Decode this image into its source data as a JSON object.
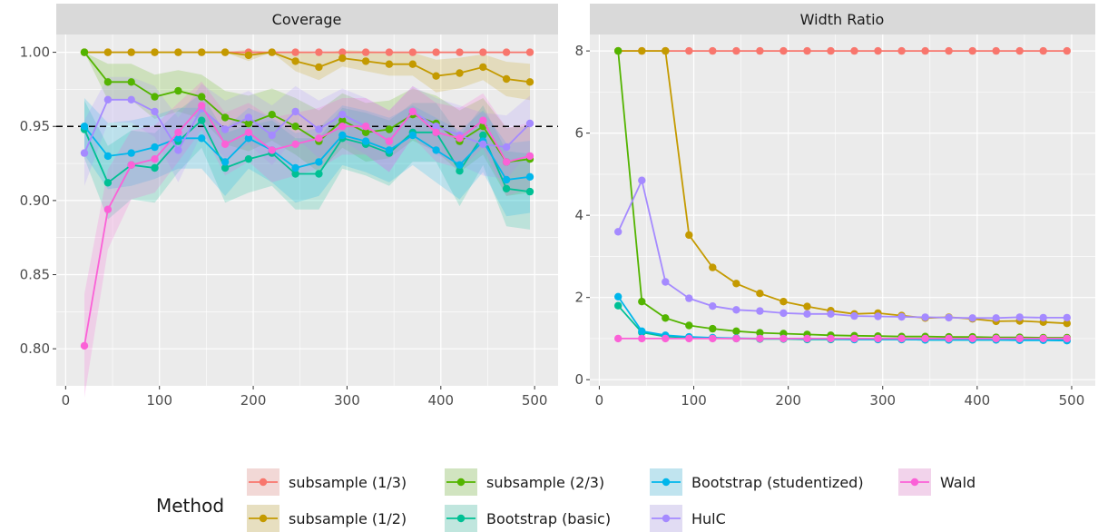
{
  "legend": {
    "title": "Method",
    "items": [
      {
        "name": "subsample (1/3)",
        "color": "#F8766D"
      },
      {
        "name": "subsample (1/2)",
        "color": "#C49A00"
      },
      {
        "name": "subsample (2/3)",
        "color": "#53B400"
      },
      {
        "name": "Bootstrap (basic)",
        "color": "#00C094"
      },
      {
        "name": "Bootstrap (studentized)",
        "color": "#00B6EB"
      },
      {
        "name": "HulC",
        "color": "#A58AFF"
      },
      {
        "name": "Wald",
        "color": "#FB61D7"
      }
    ]
  },
  "chart_data": [
    {
      "type": "line",
      "title": "Coverage",
      "xlabel": "",
      "ylabel": "",
      "x": [
        20,
        45,
        70,
        95,
        120,
        145,
        170,
        195,
        220,
        245,
        270,
        295,
        320,
        345,
        370,
        395,
        420,
        445,
        470,
        495
      ],
      "xlim": [
        -10,
        525
      ],
      "ylim": [
        0.775,
        1.012
      ],
      "xticks": [
        0,
        100,
        200,
        300,
        400,
        500
      ],
      "yticks": [
        0.8,
        0.85,
        0.9,
        0.95,
        1.0
      ],
      "ytick_labels": [
        "0.80",
        "0.85",
        "0.90",
        "0.95",
        "1.00"
      ],
      "reference_line": {
        "y": 0.95,
        "style": "dashed"
      },
      "ribbons": true,
      "grid": true,
      "series": [
        {
          "name": "subsample (1/3)",
          "values": [
            1.0,
            1.0,
            1.0,
            1.0,
            1.0,
            1.0,
            1.0,
            1.0,
            1.0,
            1.0,
            1.0,
            1.0,
            1.0,
            1.0,
            1.0,
            1.0,
            1.0,
            1.0,
            1.0,
            1.0
          ]
        },
        {
          "name": "subsample (1/2)",
          "values": [
            1.0,
            1.0,
            1.0,
            1.0,
            1.0,
            1.0,
            1.0,
            0.998,
            1.0,
            0.994,
            0.99,
            0.996,
            0.994,
            0.992,
            0.992,
            0.984,
            0.986,
            0.99,
            0.982,
            0.98
          ]
        },
        {
          "name": "subsample (2/3)",
          "values": [
            1.0,
            0.98,
            0.98,
            0.97,
            0.974,
            0.97,
            0.956,
            0.952,
            0.958,
            0.95,
            0.94,
            0.954,
            0.946,
            0.948,
            0.958,
            0.952,
            0.94,
            0.95,
            0.926,
            0.928
          ]
        },
        {
          "name": "Bootstrap (basic)",
          "values": [
            0.948,
            0.912,
            0.924,
            0.922,
            0.94,
            0.954,
            0.922,
            0.928,
            0.932,
            0.918,
            0.918,
            0.942,
            0.938,
            0.932,
            0.946,
            0.946,
            0.92,
            0.944,
            0.908,
            0.906
          ]
        },
        {
          "name": "Bootstrap (studentized)",
          "values": [
            0.95,
            0.93,
            0.932,
            0.936,
            0.942,
            0.942,
            0.926,
            0.942,
            0.934,
            0.922,
            0.926,
            0.944,
            0.94,
            0.934,
            0.944,
            0.934,
            0.924,
            0.94,
            0.914,
            0.916
          ]
        },
        {
          "name": "HulC",
          "values": [
            0.932,
            0.968,
            0.968,
            0.96,
            0.934,
            0.962,
            0.948,
            0.956,
            0.944,
            0.96,
            0.948,
            0.958,
            0.95,
            0.94,
            0.96,
            0.95,
            0.944,
            0.938,
            0.936,
            0.952
          ]
        },
        {
          "name": "Wald",
          "values": [
            0.802,
            0.894,
            0.924,
            0.928,
            0.946,
            0.964,
            0.938,
            0.946,
            0.934,
            0.938,
            0.942,
            0.95,
            0.95,
            0.94,
            0.96,
            0.946,
            0.942,
            0.954,
            0.926,
            0.93
          ]
        }
      ]
    },
    {
      "type": "line",
      "title": "Width Ratio",
      "xlabel": "",
      "ylabel": "",
      "x": [
        20,
        45,
        70,
        95,
        120,
        145,
        170,
        195,
        220,
        245,
        270,
        295,
        320,
        345,
        370,
        395,
        420,
        445,
        470,
        495
      ],
      "xlim": [
        -10,
        525
      ],
      "ylim": [
        -0.15,
        8.4
      ],
      "xticks": [
        0,
        100,
        200,
        300,
        400,
        500
      ],
      "yticks": [
        0,
        2,
        4,
        6,
        8
      ],
      "ytick_labels": [
        "0",
        "2",
        "4",
        "6",
        "8"
      ],
      "grid": true,
      "series": [
        {
          "name": "subsample (1/3)",
          "values": [
            8.0,
            8.0,
            8.0,
            8.0,
            8.0,
            8.0,
            8.0,
            8.0,
            8.0,
            8.0,
            8.0,
            8.0,
            8.0,
            8.0,
            8.0,
            8.0,
            8.0,
            8.0,
            8.0,
            8.0
          ]
        },
        {
          "name": "subsample (1/2)",
          "values": [
            8.0,
            8.0,
            8.0,
            3.52,
            2.73,
            2.34,
            2.1,
            1.9,
            1.78,
            1.68,
            1.6,
            1.62,
            1.56,
            1.5,
            1.52,
            1.48,
            1.42,
            1.43,
            1.4,
            1.37
          ]
        },
        {
          "name": "subsample (2/3)",
          "values": [
            8.0,
            1.9,
            1.5,
            1.32,
            1.24,
            1.18,
            1.14,
            1.12,
            1.1,
            1.08,
            1.07,
            1.06,
            1.05,
            1.05,
            1.04,
            1.04,
            1.03,
            1.03,
            1.02,
            1.02
          ]
        },
        {
          "name": "Bootstrap (basic)",
          "values": [
            1.8,
            1.15,
            1.05,
            1.03,
            1.01,
            1.0,
            0.99,
            0.99,
            0.98,
            0.98,
            0.98,
            0.98,
            0.98,
            0.97,
            0.97,
            0.97,
            0.97,
            0.97,
            0.97,
            0.97
          ]
        },
        {
          "name": "Bootstrap (studentized)",
          "values": [
            2.02,
            1.18,
            1.08,
            1.04,
            1.02,
            1.01,
            1.0,
            1.0,
            0.99,
            0.99,
            0.98,
            0.98,
            0.98,
            0.97,
            0.97,
            0.97,
            0.97,
            0.96,
            0.96,
            0.95
          ]
        },
        {
          "name": "HulC",
          "values": [
            3.6,
            4.85,
            2.38,
            1.98,
            1.79,
            1.7,
            1.67,
            1.62,
            1.6,
            1.6,
            1.55,
            1.54,
            1.53,
            1.52,
            1.51,
            1.5,
            1.5,
            1.52,
            1.51,
            1.51
          ]
        },
        {
          "name": "Wald",
          "values": [
            1.0,
            1.0,
            1.0,
            1.0,
            1.0,
            1.0,
            1.0,
            1.0,
            1.0,
            1.0,
            1.0,
            1.0,
            1.0,
            1.0,
            1.0,
            1.0,
            1.0,
            1.0,
            1.0,
            1.0
          ]
        }
      ]
    }
  ]
}
